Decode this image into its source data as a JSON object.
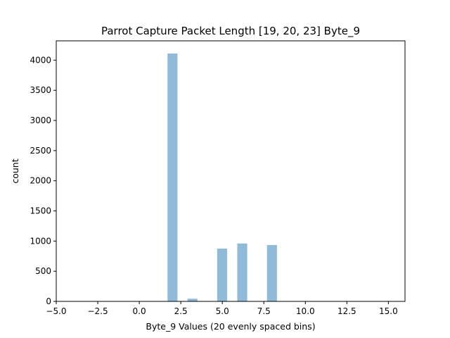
{
  "chart_data": {
    "type": "bar",
    "title": "Parrot Capture Packet Length [19, 20, 23] Byte_9",
    "xlabel": "Byte_9 Values (20 evenly spaced bins)",
    "ylabel": "count",
    "xlim": [
      -5.0,
      16.0
    ],
    "ylim": [
      0,
      4320
    ],
    "bin_width": 0.6,
    "xticks": [
      "−5.0",
      "−2.5",
      "0.0",
      "2.5",
      "5.0",
      "7.5",
      "10.0",
      "12.5",
      "15.0"
    ],
    "xtick_values": [
      -5.0,
      -2.5,
      0.0,
      2.5,
      5.0,
      7.5,
      10.0,
      12.5,
      15.0
    ],
    "yticks": [
      "0",
      "500",
      "1000",
      "1500",
      "2000",
      "2500",
      "3000",
      "3500",
      "4000"
    ],
    "ytick_values": [
      0,
      500,
      1000,
      1500,
      2000,
      2500,
      3000,
      3500,
      4000
    ],
    "bins": [
      {
        "x": 2.0,
        "value": 4110
      },
      {
        "x": 3.2,
        "value": 45
      },
      {
        "x": 4.99,
        "value": 875
      },
      {
        "x": 6.2,
        "value": 960
      },
      {
        "x": 7.99,
        "value": 935
      }
    ],
    "bar_color": "#8fbbd9",
    "grid": false,
    "legend": "none"
  }
}
